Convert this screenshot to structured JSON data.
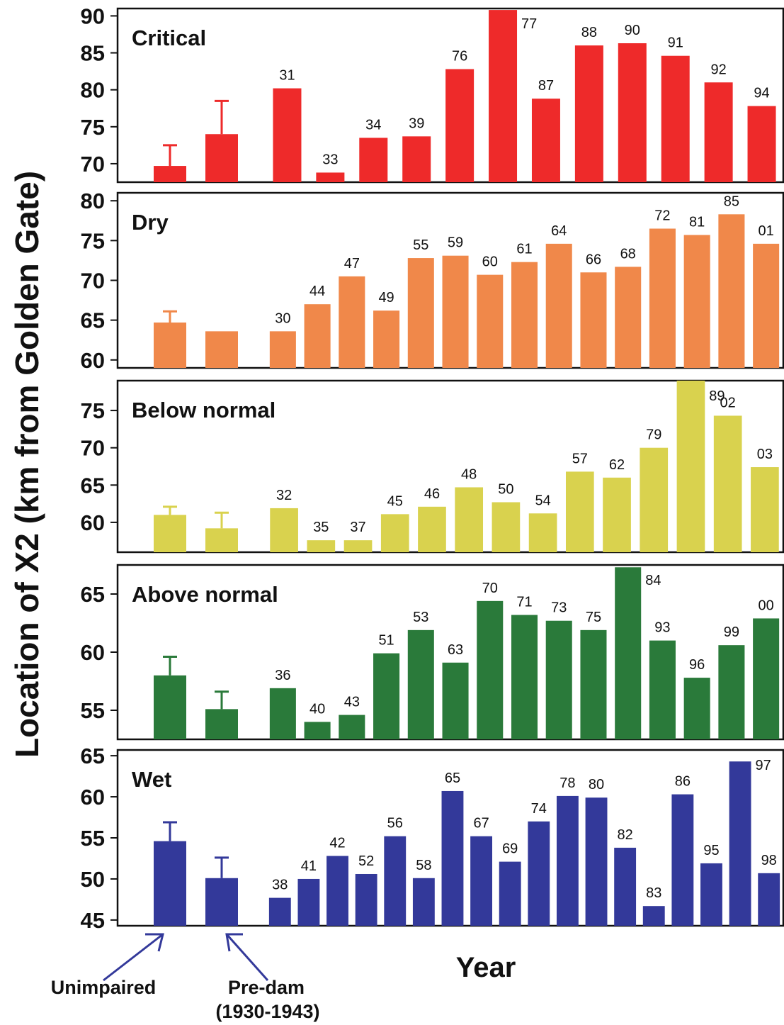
{
  "chart_data": {
    "type": "bar",
    "ylabel": "Location of X2 (km from Golden Gate)",
    "xlabel": "Year",
    "annotations": {
      "unimpaired": "Unimpaired",
      "predam_line1": "Pre-dam",
      "predam_line2": "(1930-1943)"
    },
    "colors": {
      "Critical": "#ee2a2a",
      "Dry": "#f0884a",
      "Below normal": "#d9d24e",
      "Above normal": "#2a7a3a",
      "Wet": "#33399a"
    },
    "panels": [
      {
        "title": "Critical",
        "ylim": [
          67.5,
          91
        ],
        "yticks": [
          70,
          75,
          80,
          85,
          90
        ],
        "bars": [
          {
            "label": "",
            "value": 69.7,
            "err": 72.5
          },
          {
            "label": "",
            "value": 74,
            "err": 78.5
          },
          {
            "label": "31",
            "value": 80.2
          },
          {
            "label": "33",
            "value": 68.8
          },
          {
            "label": "34",
            "value": 73.5
          },
          {
            "label": "39",
            "value": 73.7
          },
          {
            "label": "76",
            "value": 82.8
          },
          {
            "label": "77",
            "value": 90.8
          },
          {
            "label": "87",
            "value": 78.8
          },
          {
            "label": "88",
            "value": 86
          },
          {
            "label": "90",
            "value": 86.3
          },
          {
            "label": "91",
            "value": 84.6
          },
          {
            "label": "92",
            "value": 81
          },
          {
            "label": "94",
            "value": 77.8
          }
        ]
      },
      {
        "title": "Dry",
        "ylim": [
          59,
          81
        ],
        "yticks": [
          60,
          65,
          70,
          75,
          80
        ],
        "bars": [
          {
            "label": "",
            "value": 64.7,
            "err": 66.1
          },
          {
            "label": "",
            "value": 63.6
          },
          {
            "label": "30",
            "value": 63.6
          },
          {
            "label": "44",
            "value": 67
          },
          {
            "label": "47",
            "value": 70.5
          },
          {
            "label": "49",
            "value": 66.2
          },
          {
            "label": "55",
            "value": 72.8
          },
          {
            "label": "59",
            "value": 73.1
          },
          {
            "label": "60",
            "value": 70.7
          },
          {
            "label": "61",
            "value": 72.3
          },
          {
            "label": "64",
            "value": 74.6
          },
          {
            "label": "66",
            "value": 71
          },
          {
            "label": "68",
            "value": 71.7
          },
          {
            "label": "72",
            "value": 76.5
          },
          {
            "label": "81",
            "value": 75.7
          },
          {
            "label": "85",
            "value": 78.3
          },
          {
            "label": "01",
            "value": 74.6
          }
        ]
      },
      {
        "title": "Below normal",
        "ylim": [
          56,
          79
        ],
        "yticks": [
          60,
          65,
          70,
          75
        ],
        "bars": [
          {
            "label": "",
            "value": 61,
            "err": 62.1
          },
          {
            "label": "",
            "value": 59.2,
            "err": 61.3
          },
          {
            "label": "32",
            "value": 61.9
          },
          {
            "label": "35",
            "value": 57.6
          },
          {
            "label": "37",
            "value": 57.6
          },
          {
            "label": "45",
            "value": 61.1
          },
          {
            "label": "46",
            "value": 62.1
          },
          {
            "label": "48",
            "value": 64.7
          },
          {
            "label": "50",
            "value": 62.7
          },
          {
            "label": "54",
            "value": 61.2
          },
          {
            "label": "57",
            "value": 66.8
          },
          {
            "label": "62",
            "value": 66
          },
          {
            "label": "79",
            "value": 70
          },
          {
            "label": "89",
            "value": 79
          },
          {
            "label": "02",
            "value": 74.3
          },
          {
            "label": "03",
            "value": 67.4
          }
        ]
      },
      {
        "title": "Above normal",
        "ylim": [
          52.5,
          67.5
        ],
        "yticks": [
          55,
          60,
          65
        ],
        "bars": [
          {
            "label": "",
            "value": 58,
            "err": 59.6
          },
          {
            "label": "",
            "value": 55.1,
            "err": 56.6
          },
          {
            "label": "36",
            "value": 56.9
          },
          {
            "label": "40",
            "value": 54
          },
          {
            "label": "43",
            "value": 54.6
          },
          {
            "label": "51",
            "value": 59.9
          },
          {
            "label": "53",
            "value": 61.9
          },
          {
            "label": "63",
            "value": 59.1
          },
          {
            "label": "70",
            "value": 64.4
          },
          {
            "label": "71",
            "value": 63.2
          },
          {
            "label": "73",
            "value": 62.7
          },
          {
            "label": "75",
            "value": 61.9
          },
          {
            "label": "84",
            "value": 67.3
          },
          {
            "label": "93",
            "value": 61
          },
          {
            "label": "96",
            "value": 57.8
          },
          {
            "label": "99",
            "value": 60.6
          },
          {
            "label": "00",
            "value": 62.9
          }
        ]
      },
      {
        "title": "Wet",
        "ylim": [
          44.3,
          65.7
        ],
        "yticks": [
          45,
          50,
          55,
          60,
          65
        ],
        "bars": [
          {
            "label": "",
            "value": 54.6,
            "err": 56.9
          },
          {
            "label": "",
            "value": 50.1,
            "err": 52.6
          },
          {
            "label": "38",
            "value": 47.7
          },
          {
            "label": "41",
            "value": 50
          },
          {
            "label": "42",
            "value": 52.8
          },
          {
            "label": "52",
            "value": 50.6
          },
          {
            "label": "56",
            "value": 55.2
          },
          {
            "label": "58",
            "value": 50.1
          },
          {
            "label": "65",
            "value": 60.7
          },
          {
            "label": "67",
            "value": 55.2
          },
          {
            "label": "69",
            "value": 52.1
          },
          {
            "label": "74",
            "value": 57
          },
          {
            "label": "78",
            "value": 60.1
          },
          {
            "label": "80",
            "value": 59.9
          },
          {
            "label": "82",
            "value": 53.8
          },
          {
            "label": "83",
            "value": 46.7
          },
          {
            "label": "86",
            "value": 60.3
          },
          {
            "label": "95",
            "value": 51.9
          },
          {
            "label": "97",
            "value": 64.3
          },
          {
            "label": "98",
            "value": 50.7
          }
        ]
      }
    ]
  }
}
